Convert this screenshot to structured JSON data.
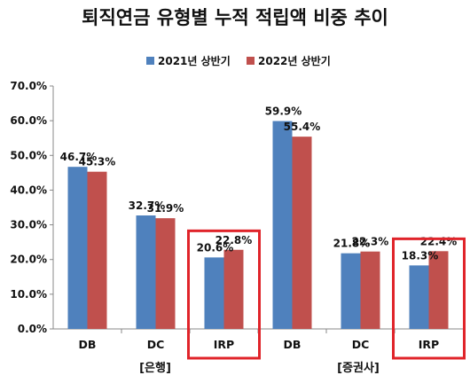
{
  "chart_data": {
    "type": "bar",
    "title": "퇴직연금 유형별 누적 적립액 비중 추이",
    "categories": [
      "DB",
      "DC",
      "IRP",
      "DB",
      "DC",
      "IRP"
    ],
    "groups": [
      {
        "label": "[은행]"
      },
      {
        "label": "[증권사]"
      }
    ],
    "series": [
      {
        "name": "2021년 상반기",
        "color": "#4F81BD",
        "values": [
          46.7,
          32.7,
          20.6,
          59.9,
          21.8,
          18.3
        ],
        "labels": [
          "46.7%",
          "32.7%",
          "20.6%",
          "59.9%",
          "21.8%",
          "18.3%"
        ]
      },
      {
        "name": "2022년 상반기",
        "color": "#C0504D",
        "values": [
          45.3,
          31.9,
          22.8,
          55.4,
          22.3,
          22.4
        ],
        "labels": [
          "45.3%",
          "31.9%",
          "22.8%",
          "55.4%",
          "22.3%",
          "22.4%"
        ]
      }
    ],
    "yticks": [
      "0.0%",
      "10.0%",
      "20.0%",
      "30.0%",
      "40.0%",
      "50.0%",
      "60.0%",
      "70.0%"
    ],
    "ylim": [
      0,
      70
    ],
    "grid": false,
    "legend": "top-center",
    "highlight_categories": [
      2,
      5
    ],
    "highlight_color": "#E0242A"
  }
}
